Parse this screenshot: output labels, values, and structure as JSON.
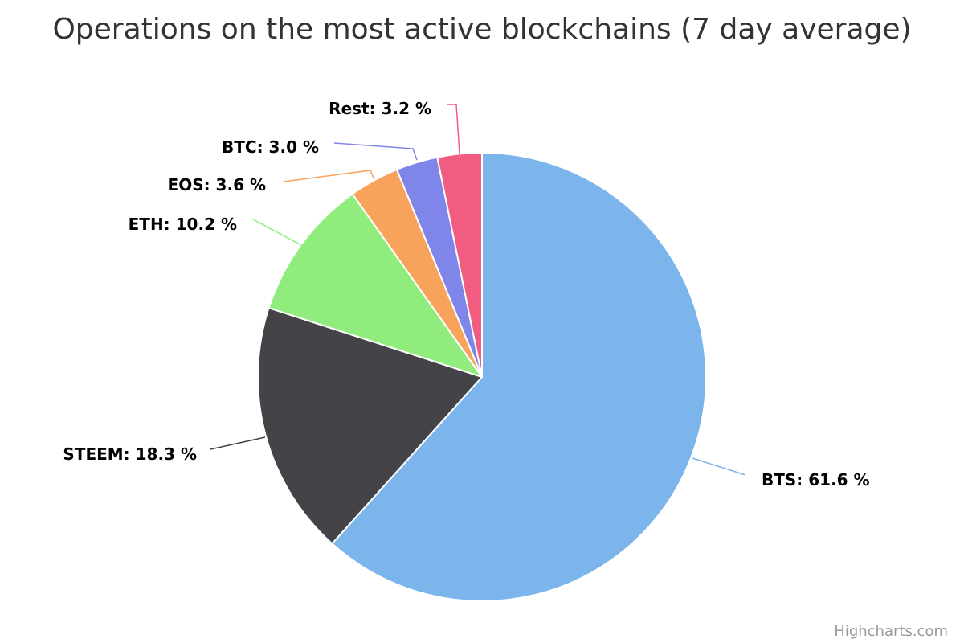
{
  "chart_data": {
    "type": "pie",
    "title": "Operations on the most active blockchains (7 day average)",
    "unit": "%",
    "slices": [
      {
        "name": "BTS",
        "value": 61.6,
        "label": "BTS: 61.6 %",
        "color": "#7cb5ec"
      },
      {
        "name": "STEEM",
        "value": 18.3,
        "label": "STEEM: 18.3 %",
        "color": "#434348"
      },
      {
        "name": "ETH",
        "value": 10.2,
        "label": "ETH: 10.2 %",
        "color": "#90ed7d"
      },
      {
        "name": "EOS",
        "value": 3.6,
        "label": "EOS: 3.6 %",
        "color": "#f7a35c"
      },
      {
        "name": "BTC",
        "value": 3.0,
        "label": "BTC: 3.0 %",
        "color": "#8085e9"
      },
      {
        "name": "Rest",
        "value": 3.2,
        "label": "Rest: 3.2 %",
        "color": "#f15c80"
      }
    ],
    "legend": "none",
    "data_labels": "outside-with-connectors"
  },
  "credits": {
    "text": "Highcharts.com"
  }
}
